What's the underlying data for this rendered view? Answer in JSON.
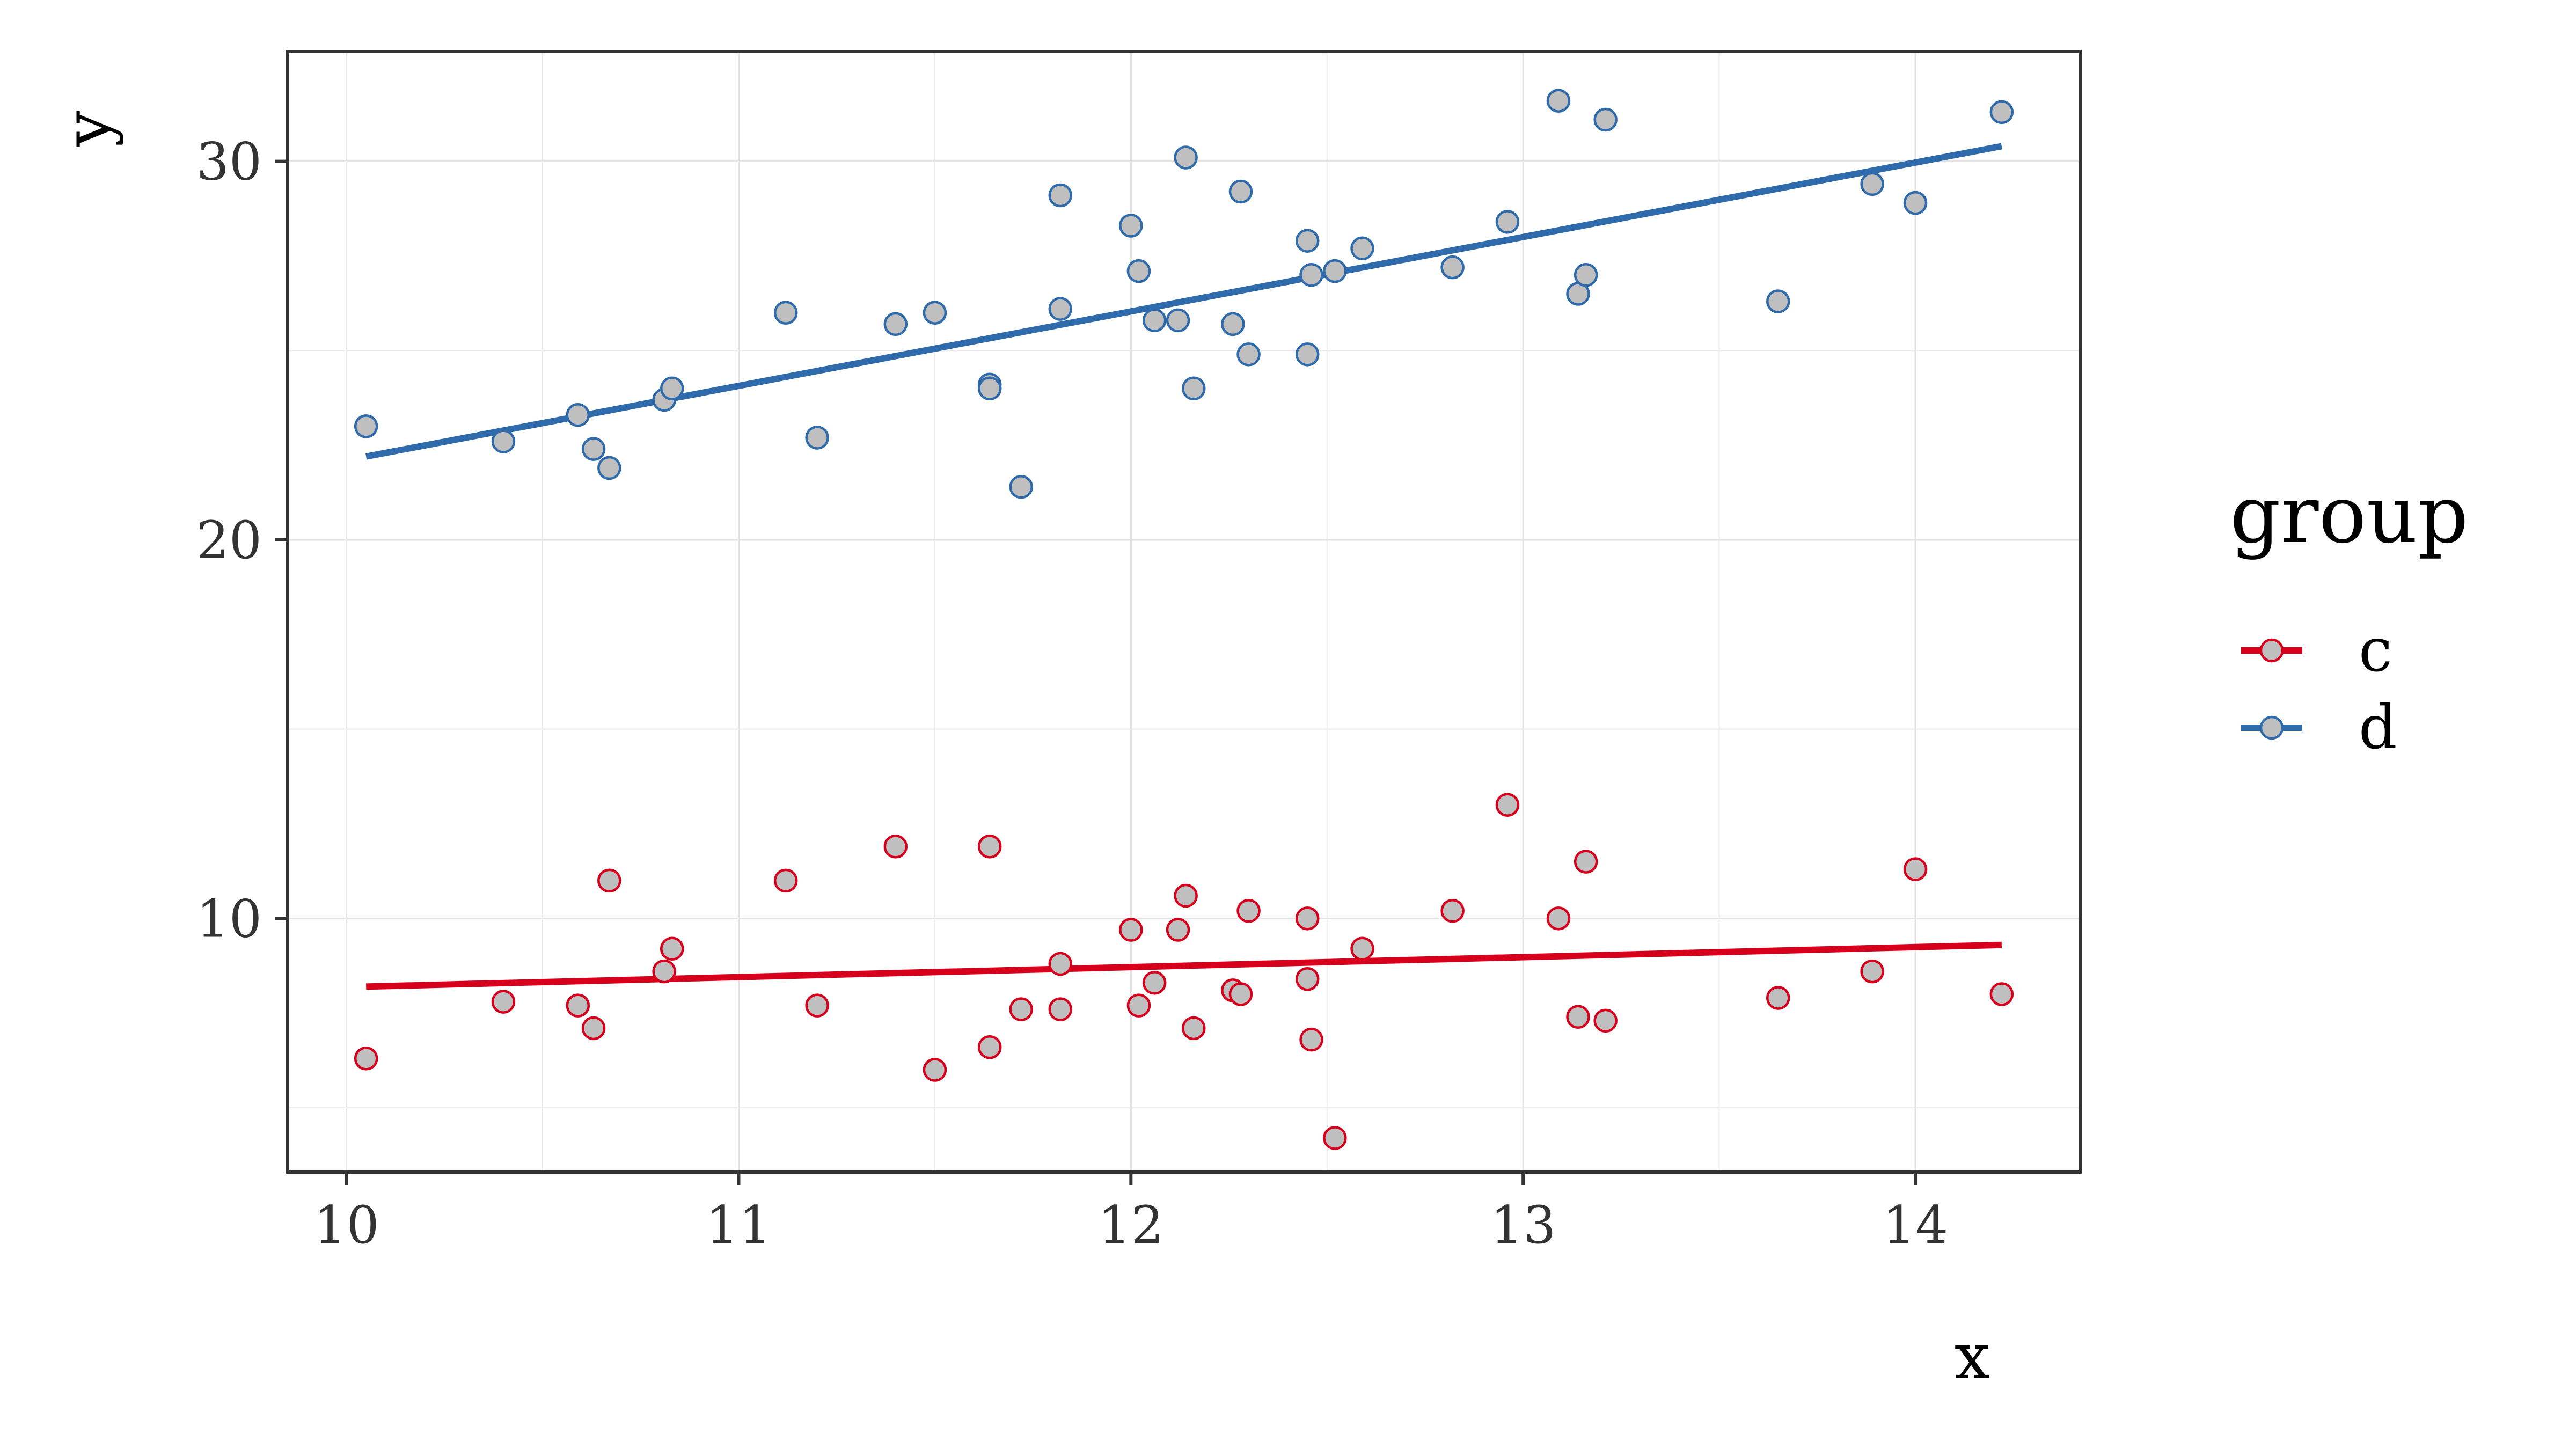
{
  "chart_data": {
    "type": "scatter",
    "xlabel": "x",
    "ylabel": "y",
    "xlim": [
      9.85,
      14.42
    ],
    "ylim": [
      3.3,
      32.9
    ],
    "x_ticks": [
      10,
      11,
      12,
      13,
      14
    ],
    "x_tick_labels": [
      "10",
      "11",
      "12",
      "13",
      "14"
    ],
    "y_ticks": [
      10,
      20,
      30
    ],
    "y_tick_labels": [
      "10",
      "20",
      "30"
    ],
    "grid": true,
    "legend": {
      "title": "group",
      "position": "right"
    },
    "series": [
      {
        "name": "c",
        "color": "#d7001c",
        "fill": "#bfbfbf",
        "trend": {
          "x": [
            10.05,
            14.22
          ],
          "y": [
            8.2,
            9.3
          ]
        },
        "x": [
          10.05,
          10.4,
          10.59,
          10.63,
          10.67,
          10.81,
          10.83,
          11.12,
          11.2,
          11.4,
          11.5,
          11.64,
          11.64,
          11.72,
          11.82,
          11.82,
          12.0,
          12.02,
          12.06,
          12.12,
          12.14,
          12.16,
          12.26,
          12.28,
          12.3,
          12.45,
          12.45,
          12.46,
          12.52,
          12.59,
          12.82,
          12.96,
          13.09,
          13.14,
          13.16,
          13.21,
          13.65,
          13.89,
          14.0,
          14.22
        ],
        "y": [
          6.3,
          7.8,
          7.7,
          7.1,
          11.0,
          8.6,
          9.2,
          11.0,
          7.7,
          11.9,
          6.0,
          11.9,
          6.6,
          7.6,
          8.8,
          7.6,
          9.7,
          7.7,
          8.3,
          9.7,
          10.6,
          7.1,
          8.1,
          8.0,
          10.2,
          10.0,
          8.4,
          6.8,
          4.2,
          9.2,
          10.2,
          13.0,
          10.0,
          7.4,
          11.5,
          7.3,
          7.9,
          8.6,
          11.3,
          8.0
        ]
      },
      {
        "name": "d",
        "color": "#2f6aaa",
        "fill": "#bfbfbf",
        "trend": {
          "x": [
            10.05,
            14.22
          ],
          "y": [
            22.2,
            30.4
          ]
        },
        "x": [
          10.05,
          10.4,
          10.59,
          10.63,
          10.67,
          10.81,
          10.83,
          11.12,
          11.2,
          11.4,
          11.5,
          11.64,
          11.64,
          11.72,
          11.82,
          11.82,
          12.0,
          12.02,
          12.06,
          12.12,
          12.14,
          12.16,
          12.26,
          12.28,
          12.3,
          12.45,
          12.45,
          12.46,
          12.52,
          12.59,
          12.82,
          12.96,
          13.09,
          13.14,
          13.16,
          13.21,
          13.65,
          13.89,
          14.0,
          14.22
        ],
        "y": [
          23.0,
          22.6,
          23.3,
          22.4,
          21.9,
          23.7,
          24.0,
          26.0,
          22.7,
          25.7,
          26.0,
          24.1,
          24.0,
          21.4,
          26.1,
          29.1,
          28.3,
          27.1,
          25.8,
          25.8,
          30.1,
          24.0,
          25.7,
          29.2,
          24.9,
          27.9,
          24.9,
          27.0,
          27.1,
          27.7,
          27.2,
          28.4,
          31.6,
          26.5,
          27.0,
          31.1,
          26.3,
          29.4,
          28.9,
          31.3
        ]
      }
    ]
  }
}
